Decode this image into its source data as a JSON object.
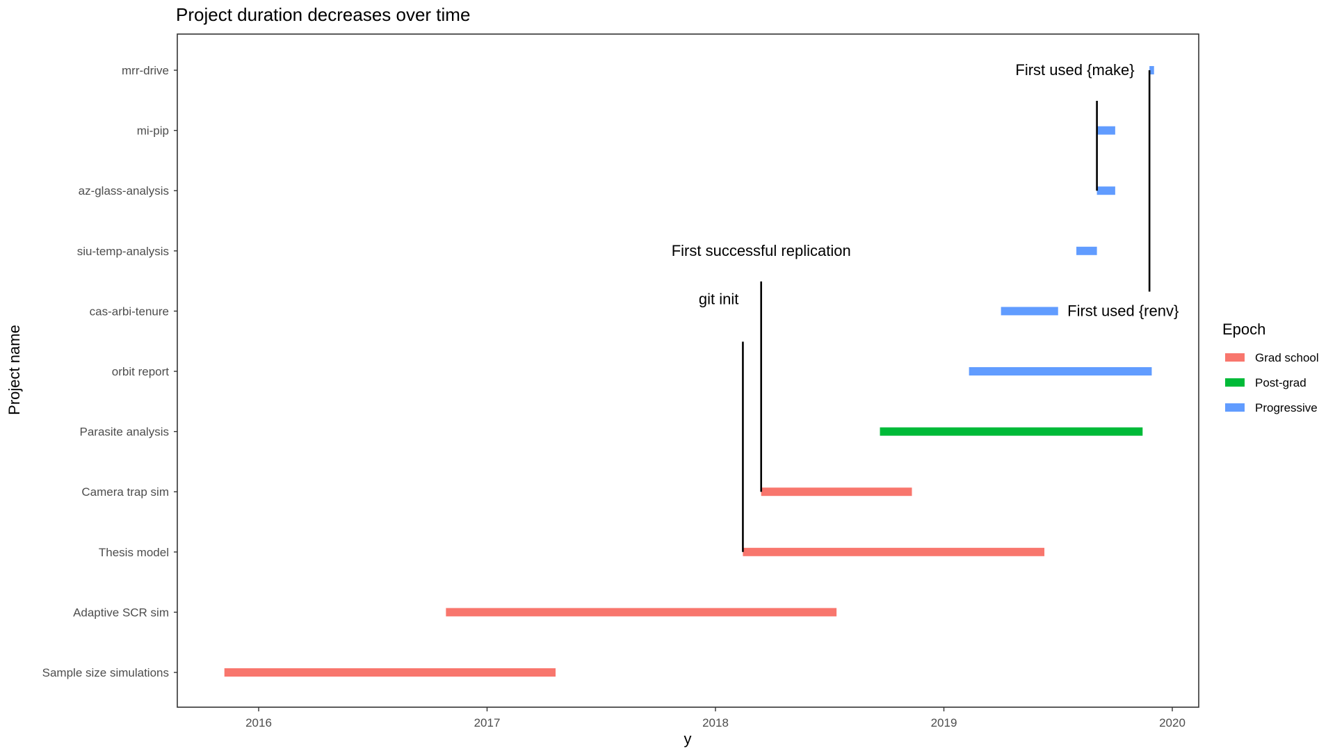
{
  "chart_data": {
    "type": "gantt",
    "title": "Project duration decreases over time",
    "xlabel": "y",
    "ylabel": "Project name",
    "xlim": [
      2015.65,
      2020.1
    ],
    "x_ticks": [
      2016,
      2017,
      2018,
      2019,
      2020
    ],
    "x_tick_labels": [
      "2016",
      "2017",
      "2018",
      "2019",
      "2020"
    ],
    "grid": false,
    "categories": [
      "Sample size simulations",
      "Adaptive SCR sim",
      "Thesis model",
      "Camera trap sim",
      "Parasite analysis",
      "orbit report",
      "cas-arbi-tenure",
      "siu-temp-analysis",
      "az-glass-analysis",
      "mi-pip",
      "mrr-drive"
    ],
    "projects": [
      {
        "name": "Sample size simulations",
        "start": 2015.85,
        "end": 2017.3,
        "epoch": "Grad school"
      },
      {
        "name": "Adaptive SCR sim",
        "start": 2016.82,
        "end": 2018.53,
        "epoch": "Grad school"
      },
      {
        "name": "Thesis model",
        "start": 2018.12,
        "end": 2019.44,
        "epoch": "Grad school"
      },
      {
        "name": "Camera trap sim",
        "start": 2018.2,
        "end": 2018.86,
        "epoch": "Grad school"
      },
      {
        "name": "Parasite analysis",
        "start": 2018.72,
        "end": 2019.87,
        "epoch": "Post-grad"
      },
      {
        "name": "orbit report",
        "start": 2019.11,
        "end": 2019.91,
        "epoch": "Progressive"
      },
      {
        "name": "cas-arbi-tenure",
        "start": 2019.25,
        "end": 2019.5,
        "epoch": "Progressive"
      },
      {
        "name": "siu-temp-analysis",
        "start": 2019.58,
        "end": 2019.67,
        "epoch": "Progressive"
      },
      {
        "name": "az-glass-analysis",
        "start": 2019.67,
        "end": 2019.75,
        "epoch": "Progressive"
      },
      {
        "name": "mi-pip",
        "start": 2019.67,
        "end": 2019.75,
        "epoch": "Progressive"
      },
      {
        "name": "mrr-drive",
        "start": 2019.9,
        "end": 2019.92,
        "epoch": "Progressive"
      }
    ],
    "annotations": [
      {
        "label": "git init",
        "x": 2018.12,
        "from": "Thesis model",
        "to": "cas-arbi-tenure",
        "label_anchor": "end",
        "label_at": "top"
      },
      {
        "label": "First successful replication",
        "x": 2018.2,
        "from": "Camera trap sim",
        "to": "siu-temp-analysis",
        "label_anchor": "middle",
        "label_at": "top"
      },
      {
        "label": "First used {make}",
        "x": 2019.67,
        "from": "az-glass-analysis",
        "to": "mrr-drive",
        "label_anchor": "end",
        "label_at": "top"
      },
      {
        "label": "First used {renv}",
        "x": 2019.9,
        "from": "cas-arbi-tenure",
        "to": "mrr-drive",
        "label_anchor": "start",
        "label_at": "bottom"
      }
    ],
    "legend": {
      "title": "Epoch",
      "placement": "right",
      "items": [
        {
          "name": "Grad school",
          "color": "#F8766D"
        },
        {
          "name": "Post-grad",
          "color": "#00BA38"
        },
        {
          "name": "Progressive",
          "color": "#619CFF"
        }
      ]
    }
  }
}
